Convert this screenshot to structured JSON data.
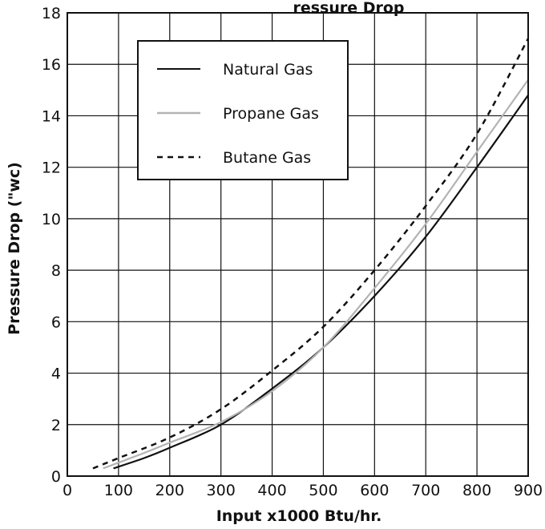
{
  "chart_data": {
    "type": "line",
    "title_fragments": [
      "ressure Drop"
    ],
    "xlabel": "Input x1000 Btu/hr.",
    "ylabel": "Pressure Drop (\"wc)",
    "xlim": [
      0,
      900
    ],
    "ylim": [
      0,
      18
    ],
    "x_ticks": [
      "0",
      "100",
      "200",
      "300",
      "400",
      "500",
      "600",
      "700",
      "800",
      "900"
    ],
    "y_ticks": [
      "0",
      "2",
      "4",
      "6",
      "8",
      "10",
      "12",
      "14",
      "16",
      "18"
    ],
    "grid": true,
    "legend_position": "top-left",
    "series": [
      {
        "name": "Natural Gas",
        "color": "#111111",
        "style": "solid",
        "points": [
          [
            90,
            0.3
          ],
          [
            150,
            0.7
          ],
          [
            200,
            1.1
          ],
          [
            300,
            2.0
          ],
          [
            400,
            3.4
          ],
          [
            500,
            5.0
          ],
          [
            600,
            7.0
          ],
          [
            700,
            9.3
          ],
          [
            800,
            12.0
          ],
          [
            900,
            14.8
          ]
        ]
      },
      {
        "name": "Propane Gas",
        "color": "#b3b3b3",
        "style": "solid",
        "points": [
          [
            70,
            0.3
          ],
          [
            150,
            0.9
          ],
          [
            200,
            1.3
          ],
          [
            300,
            2.1
          ],
          [
            400,
            3.3
          ],
          [
            500,
            5.0
          ],
          [
            600,
            7.3
          ],
          [
            700,
            9.8
          ],
          [
            800,
            12.6
          ],
          [
            900,
            15.4
          ]
        ]
      },
      {
        "name": "Butane Gas",
        "color": "#111111",
        "style": "dashed",
        "points": [
          [
            50,
            0.3
          ],
          [
            100,
            0.7
          ],
          [
            200,
            1.5
          ],
          [
            300,
            2.6
          ],
          [
            400,
            4.1
          ],
          [
            500,
            5.8
          ],
          [
            600,
            8.0
          ],
          [
            700,
            10.5
          ],
          [
            800,
            13.3
          ],
          [
            900,
            17.0
          ]
        ]
      }
    ]
  }
}
